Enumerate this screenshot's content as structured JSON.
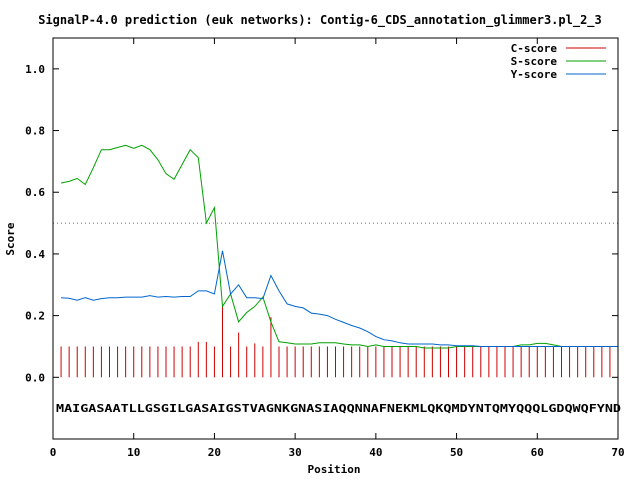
{
  "chart_data": {
    "type": "line",
    "title": "SignalP-4.0 prediction (euk networks): Contig-6_CDS_annotation_glimmer3.pl_2_3",
    "xlabel": "Position",
    "ylabel": "Score",
    "xlim": [
      0,
      70
    ],
    "ylim": [
      -0.2,
      1.1
    ],
    "xticks": [
      "0",
      "10",
      "20",
      "30",
      "40",
      "50",
      "60",
      "70"
    ],
    "yticks": [
      "0.0",
      "0.2",
      "0.4",
      "0.6",
      "0.8",
      "1.0"
    ],
    "xtick_values": [
      0,
      10,
      20,
      30,
      40,
      50,
      60,
      70
    ],
    "ytick_values": [
      0.0,
      0.2,
      0.4,
      0.6,
      0.8,
      1.0
    ],
    "threshold": 0.5,
    "sequence": "MAIGASAATLLGSGILGASAIGSTVAGNKGNASIAQQNNAFNEKMLQKQMDYNTQMYQQQLGDQWQFYND",
    "legend_position": "top-right",
    "colors": {
      "c": "#cc0000",
      "s": "#00a000",
      "y": "#0066cc",
      "threshold": "#ff00ff"
    },
    "series": [
      {
        "name": "C-score",
        "key": "c",
        "style": "impulse",
        "values": [
          0.1,
          0.1,
          0.1,
          0.1,
          0.1,
          0.1,
          0.1,
          0.1,
          0.1,
          0.1,
          0.1,
          0.1,
          0.1,
          0.1,
          0.1,
          0.1,
          0.1,
          0.115,
          0.115,
          0.1,
          0.235,
          0.1,
          0.145,
          0.1,
          0.11,
          0.1,
          0.195,
          0.1,
          0.1,
          0.1,
          0.1,
          0.1,
          0.1,
          0.1,
          0.1,
          0.1,
          0.1,
          0.1,
          0.1,
          0.1,
          0.1,
          0.1,
          0.1,
          0.1,
          0.1,
          0.1,
          0.1,
          0.1,
          0.1,
          0.1,
          0.1,
          0.1,
          0.1,
          0.1,
          0.1,
          0.1,
          0.1,
          0.1,
          0.1,
          0.1,
          0.1,
          0.1,
          0.1,
          0.1,
          0.1,
          0.1,
          0.1,
          0.1,
          0.1,
          0.1
        ]
      },
      {
        "name": "S-score",
        "key": "s",
        "style": "line",
        "values": [
          0.63,
          0.635,
          0.645,
          0.625,
          0.68,
          0.738,
          0.738,
          0.745,
          0.752,
          0.742,
          0.752,
          0.738,
          0.705,
          0.66,
          0.642,
          0.69,
          0.738,
          0.712,
          0.5,
          0.55,
          0.23,
          0.27,
          0.18,
          0.21,
          0.23,
          0.26,
          0.18,
          0.115,
          0.112,
          0.108,
          0.108,
          0.108,
          0.112,
          0.112,
          0.112,
          0.108,
          0.105,
          0.105,
          0.1,
          0.105,
          0.1,
          0.1,
          0.1,
          0.1,
          0.1,
          0.095,
          0.095,
          0.095,
          0.095,
          0.1,
          0.1,
          0.1,
          0.1,
          0.1,
          0.1,
          0.1,
          0.1,
          0.105,
          0.105,
          0.11,
          0.11,
          0.105,
          0.1,
          0.1,
          0.1,
          0.1,
          0.1,
          0.1,
          0.1,
          0.1
        ]
      },
      {
        "name": "Y-score",
        "key": "y",
        "style": "line",
        "values": [
          0.258,
          0.256,
          0.25,
          0.258,
          0.25,
          0.255,
          0.258,
          0.258,
          0.26,
          0.26,
          0.26,
          0.265,
          0.26,
          0.262,
          0.26,
          0.262,
          0.262,
          0.28,
          0.28,
          0.27,
          0.41,
          0.27,
          0.3,
          0.258,
          0.258,
          0.255,
          0.33,
          0.28,
          0.238,
          0.23,
          0.225,
          0.208,
          0.205,
          0.2,
          0.188,
          0.178,
          0.168,
          0.16,
          0.148,
          0.132,
          0.122,
          0.118,
          0.112,
          0.108,
          0.108,
          0.108,
          0.108,
          0.105,
          0.105,
          0.102,
          0.102,
          0.102,
          0.1,
          0.1,
          0.1,
          0.1,
          0.1,
          0.1,
          0.1,
          0.1,
          0.1,
          0.1,
          0.1,
          0.1,
          0.1,
          0.1,
          0.1,
          0.1,
          0.1,
          0.1
        ]
      }
    ]
  }
}
